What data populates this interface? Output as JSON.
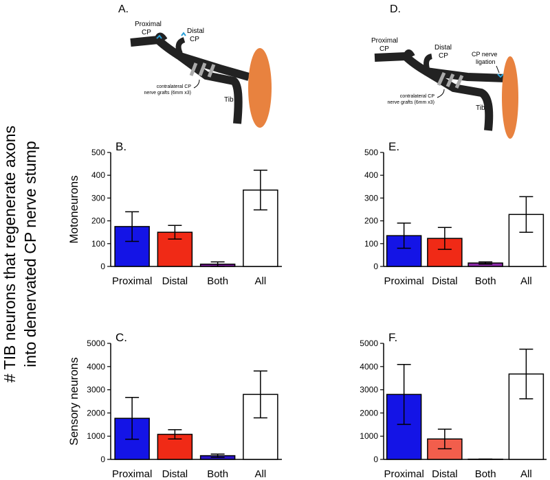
{
  "y_label": [
    "# TIB neurons that regenerate axons",
    "into denervated CP nerve stump"
  ],
  "diagrams": [
    {
      "title": "A.",
      "labels": [
        "Proximal",
        "CP",
        "Distal",
        "CP",
        "contralateral CP",
        "nerve grafts (6mm x3)",
        "Tib"
      ]
    },
    {
      "title": "D.",
      "labels": [
        "Proximal",
        "CP",
        "Distal",
        "CP",
        "CP nerve",
        "ligation",
        "contralateral CP",
        "nerve grafts (6mm x3)",
        "Tib"
      ]
    }
  ],
  "chart_data": [
    {
      "type": "bar",
      "title": "B.",
      "ylabel": "Motoneurons",
      "categories": [
        "Proximal",
        "Distal",
        "Both",
        "All"
      ],
      "values": [
        175,
        150,
        10,
        335
      ],
      "errors": [
        65,
        30,
        10,
        87
      ],
      "colors": [
        "#1414e6",
        "#f02a16",
        "#7c1c9c",
        "#ffffff"
      ],
      "ylim": [
        0,
        500
      ],
      "yticks": [
        0,
        100,
        200,
        300,
        400,
        500
      ]
    },
    {
      "type": "bar",
      "title": "C.",
      "ylabel": "Sensory neurons",
      "categories": [
        "Proximal",
        "Distal",
        "Both",
        "All"
      ],
      "values": [
        1770,
        1080,
        160,
        2800
      ],
      "errors": [
        900,
        200,
        70,
        1010
      ],
      "colors": [
        "#1414e6",
        "#f02a16",
        "#2a14c8",
        "#ffffff"
      ],
      "ylim": [
        0,
        5000
      ],
      "yticks": [
        0,
        1000,
        2000,
        3000,
        4000,
        5000
      ]
    },
    {
      "type": "bar",
      "title": "E.",
      "categories": [
        "Proximal",
        "Distal",
        "Both",
        "All"
      ],
      "values": [
        135,
        123,
        15,
        228
      ],
      "errors": [
        55,
        48,
        5,
        78
      ],
      "colors": [
        "#1414e6",
        "#f02a16",
        "#8c2aa8",
        "#ffffff"
      ],
      "ylim": [
        0,
        500
      ],
      "yticks": [
        0,
        100,
        200,
        300,
        400,
        500
      ]
    },
    {
      "type": "bar",
      "title": "F.",
      "categories": [
        "Proximal",
        "Distal",
        "Both",
        "All"
      ],
      "values": [
        2800,
        880,
        10,
        3680
      ],
      "errors": [
        1290,
        420,
        5,
        1070
      ],
      "colors": [
        "#1414e6",
        "#f25e4c",
        "#8c2aa8",
        "#ffffff"
      ],
      "ylim": [
        0,
        5000
      ],
      "yticks": [
        0,
        1000,
        2000,
        3000,
        4000,
        5000
      ]
    }
  ]
}
